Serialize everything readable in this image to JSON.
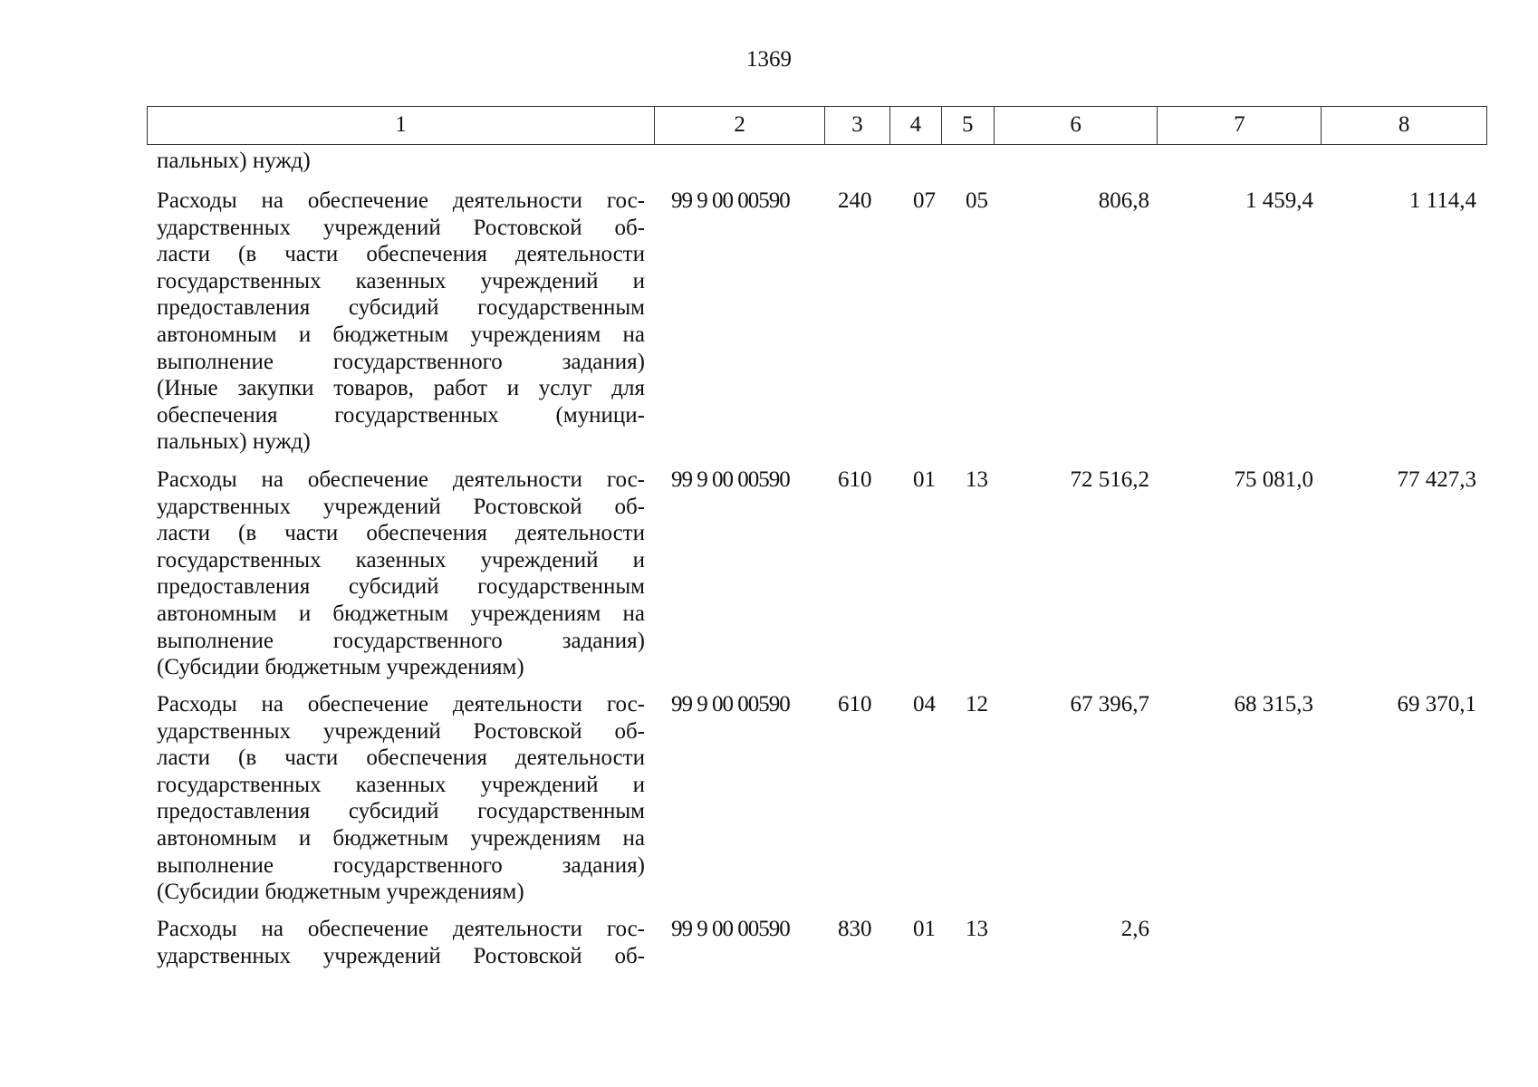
{
  "page_number": "1369",
  "header": [
    "1",
    "2",
    "3",
    "4",
    "5",
    "6",
    "7",
    "8"
  ],
  "continuation": [
    "пальных) нужд)"
  ],
  "rows": [
    {
      "lines": [
        "Расходы на обеспечение деятельности гос-",
        "ударственных учреждений Ростовской об-",
        "ласти (в части обеспечения деятельности",
        "государственных казенных учреждений и",
        "предоставления субсидий государственным",
        "автономным и бюджетным учреждениям на",
        "выполнение государственного задания)",
        "(Иные закупки товаров, работ и услуг для",
        "обеспечения государственных (муници-",
        "пальных) нужд)"
      ],
      "code": "99 9 00 00590",
      "c3": "240",
      "c4": "07",
      "c5": "05",
      "v6": "806,8",
      "v7": "1 459,4",
      "v8": "1 114,4"
    },
    {
      "lines": [
        "Расходы на обеспечение деятельности гос-",
        "ударственных учреждений Ростовской об-",
        "ласти (в части обеспечения деятельности",
        "государственных казенных учреждений и",
        "предоставления субсидий государственным",
        "автономным и бюджетным учреждениям на",
        "выполнение государственного задания)",
        "(Субсидии бюджетным учреждениям)"
      ],
      "code": "99 9 00 00590",
      "c3": "610",
      "c4": "01",
      "c5": "13",
      "v6": "72 516,2",
      "v7": "75 081,0",
      "v8": "77 427,3"
    },
    {
      "lines": [
        "Расходы на обеспечение деятельности гос-",
        "ударственных учреждений Ростовской об-",
        "ласти (в части обеспечения деятельности",
        "государственных казенных учреждений и",
        "предоставления субсидий государственным",
        "автономным и бюджетным учреждениям на",
        "выполнение государственного задания)",
        "(Субсидии бюджетным учреждениям)"
      ],
      "code": "99 9 00 00590",
      "c3": "610",
      "c4": "04",
      "c5": "12",
      "v6": "67 396,7",
      "v7": "68 315,3",
      "v8": "69 370,1"
    },
    {
      "lines": [
        "Расходы на обеспечение деятельности гос-",
        "ударственных учреждений Ростовской об-"
      ],
      "code": "99 9 00 00590",
      "c3": "830",
      "c4": "01",
      "c5": "13",
      "v6": "2,6",
      "v7": "",
      "v8": ""
    }
  ]
}
